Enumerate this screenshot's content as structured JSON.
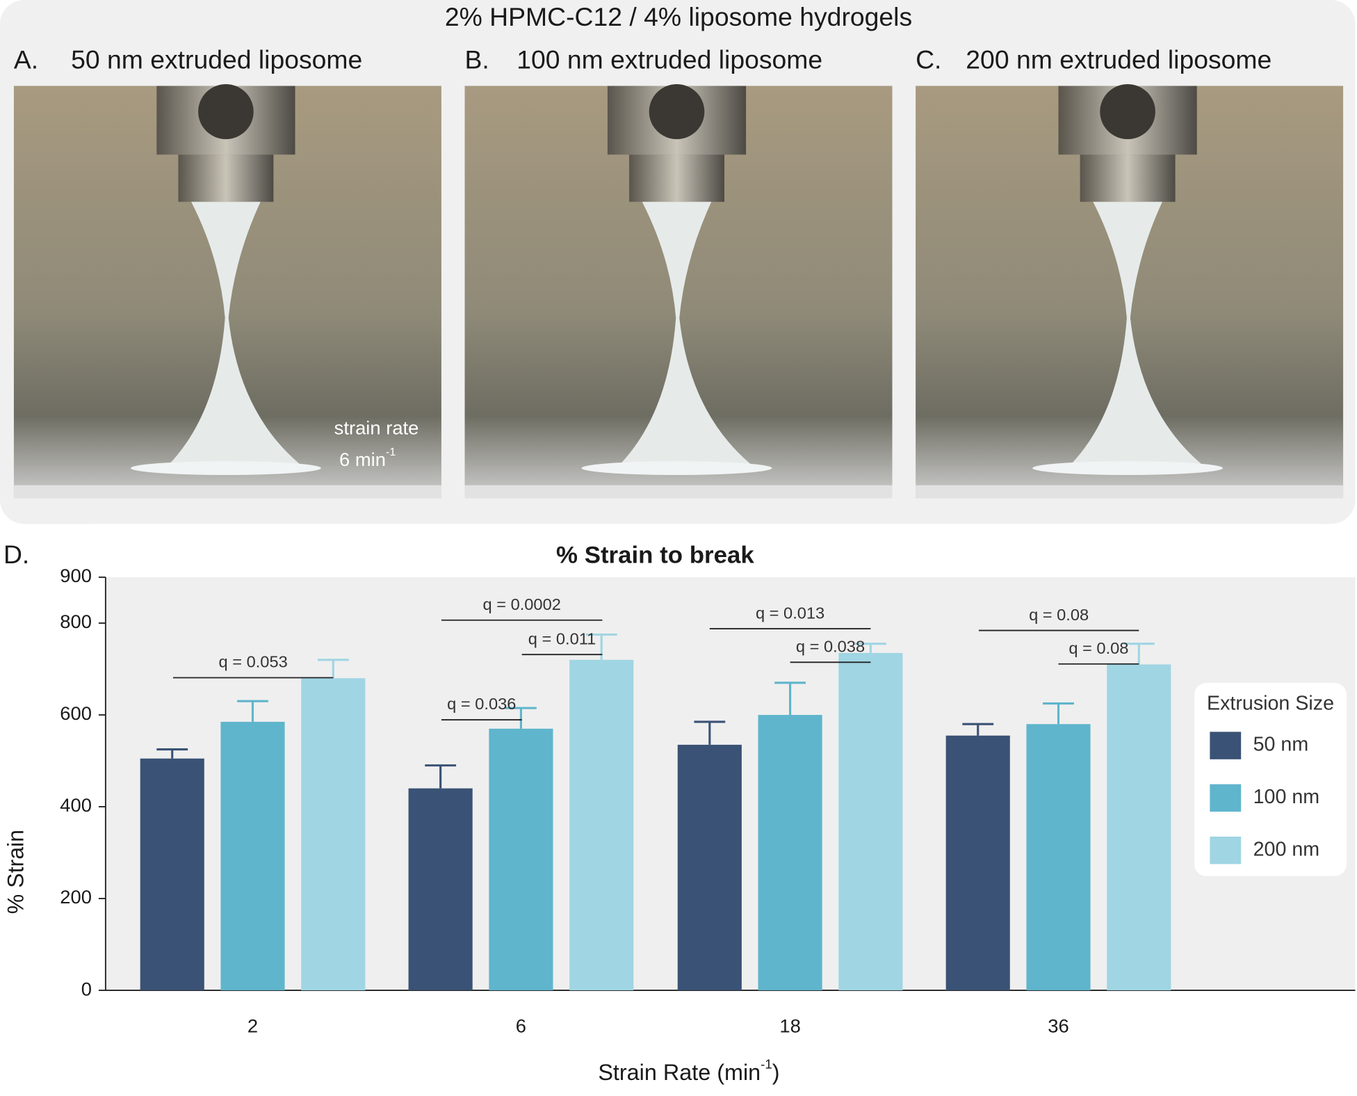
{
  "figure": {
    "title": "2% HPMC-C12 / 4% liposome hydrogels",
    "panels": [
      {
        "letter": "A.",
        "label": "50 nm extruded liposome"
      },
      {
        "letter": "B.",
        "label": "100 nm extruded liposome"
      },
      {
        "letter": "C.",
        "label": "200 nm extruded liposome"
      }
    ],
    "photo_annotation": {
      "line1": "strain rate",
      "line2": "6 min",
      "superscript": "-1"
    }
  },
  "chart_data": {
    "type": "bar",
    "panel_letter": "D.",
    "title": "% Strain to break",
    "y_label": "% Strain",
    "x_label": {
      "text": "Strain Rate (min",
      "superscript": "-1",
      "suffix": ")"
    },
    "categories": [
      "2",
      "6",
      "18",
      "36"
    ],
    "legend_title": "Extrusion Size",
    "series": [
      {
        "name": "50 nm",
        "color": "#3a5275",
        "values": [
          505,
          440,
          535,
          555
        ],
        "errors": [
          20,
          50,
          50,
          25
        ]
      },
      {
        "name": "100 nm",
        "color": "#5fb5cc",
        "values": [
          585,
          570,
          600,
          580
        ],
        "errors": [
          45,
          45,
          70,
          45
        ]
      },
      {
        "name": "200 nm",
        "color": "#a0d5e3",
        "values": [
          680,
          720,
          735,
          710
        ],
        "errors": [
          40,
          55,
          20,
          45
        ]
      }
    ],
    "annotations": [
      "q = 0.053",
      "q = 0.0002",
      "q = 0.011",
      "q = 0.036",
      "q = 0.013",
      "q = 0.038",
      "q = 0.08",
      "q = 0.08"
    ],
    "ylim": [
      0,
      900
    ],
    "yticks": [
      0,
      200,
      400,
      600,
      800,
      900
    ]
  }
}
